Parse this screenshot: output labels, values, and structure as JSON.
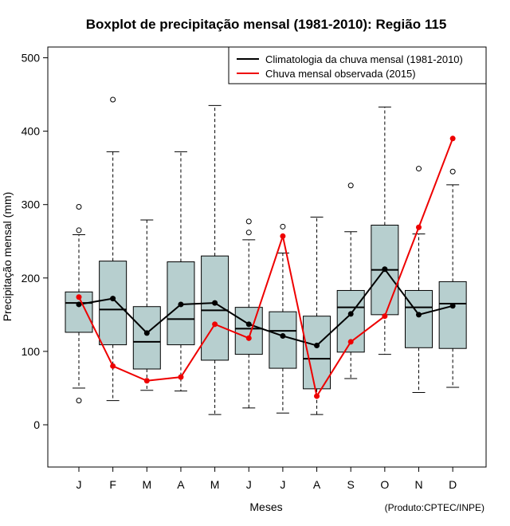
{
  "chart_data": {
    "type": "boxplot",
    "title": "Boxplot de precipitação mensal (1981-2010): Região 115",
    "xlabel": "Meses",
    "ylabel": "Precipitação mensal (mm)",
    "credit": "(Produto:CPTEC/INPE)",
    "ylim": [
      -55,
      515
    ],
    "yticks": [
      0,
      100,
      200,
      300,
      400,
      500
    ],
    "categories": [
      "J",
      "F",
      "M",
      "A",
      "M",
      "J",
      "J",
      "A",
      "S",
      "O",
      "N",
      "D"
    ],
    "boxes": [
      {
        "whisker_low": 50,
        "q1": 126,
        "median": 166,
        "q3": 181,
        "whisker_high": 259,
        "outliers": [
          33,
          265,
          297
        ]
      },
      {
        "whisker_low": 33,
        "q1": 109,
        "median": 157,
        "q3": 223,
        "whisker_high": 372,
        "outliers": [
          443
        ]
      },
      {
        "whisker_low": 47,
        "q1": 76,
        "median": 113,
        "q3": 161,
        "whisker_high": 279,
        "outliers": []
      },
      {
        "whisker_low": 46,
        "q1": 109,
        "median": 144,
        "q3": 222,
        "whisker_high": 372,
        "outliers": []
      },
      {
        "whisker_low": 14,
        "q1": 88,
        "median": 156,
        "q3": 230,
        "whisker_high": 435,
        "outliers": []
      },
      {
        "whisker_low": 23,
        "q1": 96,
        "median": 131,
        "q3": 160,
        "whisker_high": 252,
        "outliers": [
          262,
          277
        ]
      },
      {
        "whisker_low": 16,
        "q1": 77,
        "median": 128,
        "q3": 154,
        "whisker_high": 234,
        "outliers": [
          270
        ]
      },
      {
        "whisker_low": 14,
        "q1": 49,
        "median": 90,
        "q3": 148,
        "whisker_high": 283,
        "outliers": []
      },
      {
        "whisker_low": 63,
        "q1": 99,
        "median": 160,
        "q3": 183,
        "whisker_high": 263,
        "outliers": [
          326
        ]
      },
      {
        "whisker_low": 96,
        "q1": 150,
        "median": 211,
        "q3": 272,
        "whisker_high": 433,
        "outliers": []
      },
      {
        "whisker_low": 44,
        "q1": 105,
        "median": 160,
        "q3": 183,
        "whisker_high": 260,
        "outliers": [
          349
        ]
      },
      {
        "whisker_low": 51,
        "q1": 104,
        "median": 165,
        "q3": 195,
        "whisker_high": 327,
        "outliers": [
          345
        ]
      }
    ],
    "series": [
      {
        "name": "Climatologia da chuva mensal (1981-2010)",
        "color": "#000000",
        "values": [
          164,
          172,
          125,
          164,
          166,
          137,
          121,
          108,
          151,
          212,
          150,
          162
        ]
      },
      {
        "name": "Chuva mensal observada (2015)",
        "color": "#ee0000",
        "values": [
          174,
          80,
          60,
          65,
          137,
          118,
          257,
          39,
          113,
          148,
          269,
          390
        ]
      }
    ],
    "box_fill": "#b7cfcf",
    "legend_position": "top-right"
  }
}
